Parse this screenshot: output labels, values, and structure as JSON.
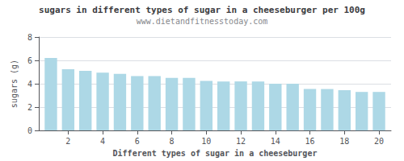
{
  "chart_data": {
    "type": "bar",
    "title": "sugars in different types of sugar in a cheeseburger per 100g",
    "subtitle": "www.dietandfitnesstoday.com",
    "xlabel": "Different types of sugar in a cheeseburger",
    "ylabel": "sugars (g)",
    "x": [
      1,
      2,
      3,
      4,
      5,
      6,
      7,
      8,
      9,
      10,
      11,
      12,
      13,
      14,
      15,
      16,
      17,
      18,
      19,
      20
    ],
    "values": [
      6.2,
      5.25,
      5.1,
      4.95,
      4.85,
      4.65,
      4.65,
      4.5,
      4.5,
      4.25,
      4.2,
      4.2,
      4.2,
      4.0,
      4.0,
      3.55,
      3.55,
      3.45,
      3.3,
      3.3
    ],
    "color": "#add8e6",
    "xlim": [
      0.3,
      20.7
    ],
    "xticks": [
      2,
      4,
      6,
      8,
      10,
      12,
      14,
      16,
      18,
      20
    ],
    "ylim": [
      0,
      8
    ],
    "yticks": [
      0,
      2,
      4,
      6,
      8
    ],
    "grid": true
  }
}
